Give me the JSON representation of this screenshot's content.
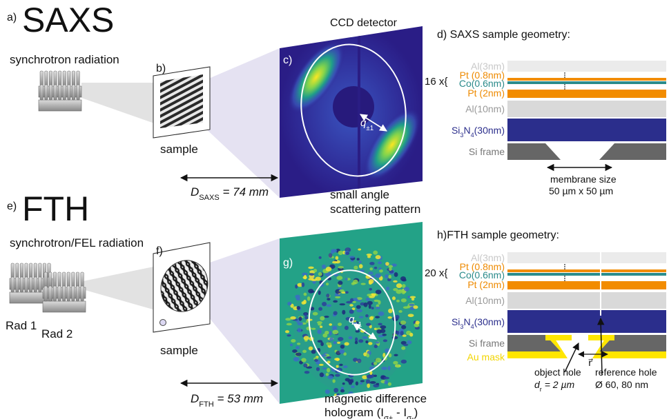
{
  "saxs": {
    "label": "a)",
    "title": "SAXS",
    "source": "synchrotron radiation",
    "sample_label": "b)",
    "sample": "sample",
    "detector_label": "c)",
    "detector": "CCD detector",
    "q": [
      "q",
      "±1"
    ],
    "distance": [
      "D",
      "SAXS",
      " = 74 mm"
    ],
    "pattern": [
      "small angle",
      "scattering pattern"
    ]
  },
  "saxs_geometry": {
    "title": "d) SAXS sample geometry:",
    "repeat": "16 x{",
    "layers": [
      "Al(3nm)",
      "Pt (0.8nm)",
      "Co(0.6nm)",
      "Pt (2nm)",
      "Al(10nm)"
    ],
    "membrane": [
      "Si",
      "3",
      "N",
      "4",
      "(30nm)"
    ],
    "frame": "Si frame",
    "membrane_size": [
      "membrane size",
      "50 µm x 50 µm"
    ]
  },
  "fth": {
    "label": "e)",
    "title": "FTH",
    "source": "synchrotron/FEL radiation",
    "sources": [
      "Rad 1",
      "Rad 2"
    ],
    "sample_label": "f)",
    "sample": "sample",
    "detector_label": "g)",
    "q": [
      "q",
      "±1"
    ],
    "distance": [
      "D",
      "FTH",
      " = 53 mm"
    ],
    "hologram_line1": "magnetic difference",
    "hologram_line2": [
      "hologram (I",
      "σ+",
      " - I",
      "σ-",
      ")"
    ]
  },
  "fth_geometry": {
    "title": "h)FTH sample geometry:",
    "repeat": "20 x{",
    "layers": [
      "Al(3nm)",
      "Pt (0.8nm)",
      "Co(0.6nm)",
      "Pt (2nm)",
      "Al(10nm)"
    ],
    "membrane": [
      "Si",
      "3",
      "N",
      "4",
      "(30nm)"
    ],
    "frame": "Si frame",
    "mask": "Au mask",
    "object_hole": "object hole",
    "object_size": [
      "d",
      "r",
      " = 2 µm"
    ],
    "separation": "r⃗",
    "reference_hole": "reference hole",
    "reference_size": "Ø 60, 80 nm"
  }
}
